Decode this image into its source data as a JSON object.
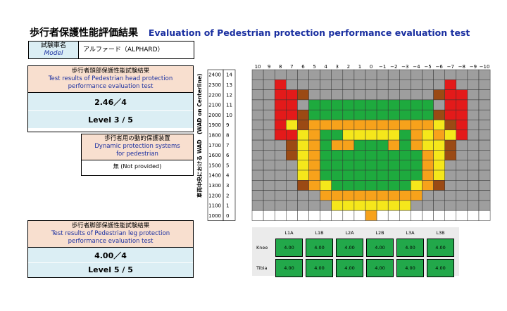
{
  "title": {
    "jp": "歩行者保護性能評価結果",
    "en": "Evaluation of Pedestrian protection performance evaluation test"
  },
  "model": {
    "label_jp": "試験車名",
    "label_en": "Model",
    "value": "アルファード（ALPHARD）"
  },
  "head_test": {
    "title_jp": "歩行者頭部保護性能試験結果",
    "title_en_line1": "Test results of Pedestrian head protection",
    "title_en_line2": "performance evaluation test",
    "score": "2.46／4",
    "level": "Level 3 / 5"
  },
  "dynamic_protection": {
    "title_jp": "歩行者用の動的保護装置",
    "title_en_line1": "Dynamic protection systems",
    "title_en_line2": "for pedestrian",
    "value": "無 (Not provided)"
  },
  "leg_test": {
    "title_jp": "歩行者脚部保護性能試験結果",
    "title_en_line1": "Test results of Pedestrian leg protection",
    "title_en_line2": "performance evaluation test",
    "score": "4.00／4",
    "level": "Level 5 / 5"
  },
  "grid": {
    "axis_label": "車両中央における WAD　(WAD on Centerline)",
    "col_labels": [
      "10",
      "9",
      "8",
      "7",
      "6",
      "5",
      "4",
      "3",
      "2",
      "1",
      "0",
      "−1",
      "−2",
      "−3",
      "−4",
      "−5",
      "−6",
      "−7",
      "−8",
      "−9",
      "−10"
    ],
    "wad_labels": [
      "2400",
      "2300",
      "2200",
      "2100",
      "2000",
      "1900",
      "1800",
      "1700",
      "1600",
      "1500",
      "1400",
      "1300",
      "1200",
      "1100",
      "1000"
    ],
    "row_labels": [
      "14",
      "13",
      "12",
      "11",
      "10",
      "9",
      "8",
      "7",
      "6",
      "5",
      "4",
      "3",
      "2",
      "1",
      "0"
    ],
    "colors": {
      "X": "#9e9e9e",
      "G": "#1eaa3e",
      "Y": "#f5e71b",
      "O": "#f7a21b",
      "B": "#9b4a14",
      "R": "#e31a1a",
      "W": "#ffffff"
    },
    "rows": [
      "XXXXXXXXXXXXXXXXXXXXX",
      "XXRXXXXXXXXXXXXXXRXXX",
      "XXRRBXXXXXXXXXXXBRRXX",
      "XXRRXGGGGGGGGGGGXRRXX",
      "XXRRBGGGGGGGGGGGBRRXX",
      "XXRYBOOOOOOOOOOOYBRXX",
      "XXRRYOGGYYYYYGOYOYRXX",
      "XXXBYOGOOGGGOGOYYBXXX",
      "XXXBYOGGGGGGGGGOYBXXX",
      "XXXXYOGGGGGGGGGOYXXXX",
      "XXXXYOGGGGGGGGGOYXXXX",
      "XXXXBOYGGGGGGGYOBXXXX",
      "XXXXXXOOOOOOOOOXXXXXX",
      "XXXXXXXYYYYYYYXXXXXXX",
      "WWWWWWWWWWOWWWWWWWWWW"
    ]
  },
  "leg_table": {
    "columns": [
      "L1A",
      "L1B",
      "L2A",
      "L2B",
      "L3A",
      "L3B"
    ],
    "rows": [
      {
        "label": "Knee",
        "values": [
          "4.00",
          "4.00",
          "4.00",
          "4.00",
          "4.00",
          "4.00"
        ]
      },
      {
        "label": "Tibia",
        "values": [
          "4.00",
          "4.00",
          "4.00",
          "4.00",
          "4.00",
          "4.00"
        ]
      }
    ]
  }
}
